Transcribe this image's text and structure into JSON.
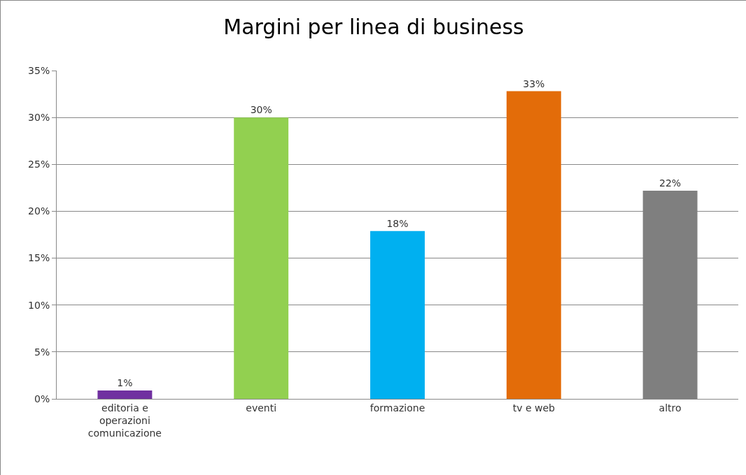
{
  "chart_data": {
    "type": "bar",
    "title": "Margini per linea di business",
    "categories": [
      "editoria e operazioni comunicazione",
      "eventi",
      "formazione",
      "tv e web",
      "altro"
    ],
    "values": [
      0.9,
      30,
      17.9,
      32.8,
      22.2
    ],
    "colors": [
      "#7030a0",
      "#92d050",
      "#00b0f0",
      "#e36c09",
      "#7f7f7f"
    ],
    "value_labels": [
      "1%",
      "30%",
      "18%",
      "33%",
      "22%"
    ],
    "ylim": [
      0,
      35
    ],
    "yticks": [
      {
        "value": 0,
        "label": "0%"
      },
      {
        "value": 5,
        "label": "5%"
      },
      {
        "value": 10,
        "label": "10%"
      },
      {
        "value": 15,
        "label": "15%"
      },
      {
        "value": 20,
        "label": "20%"
      },
      {
        "value": 25,
        "label": "25%"
      },
      {
        "value": 30,
        "label": "30%"
      },
      {
        "value": 35,
        "label": "35%"
      }
    ],
    "grid": "y"
  }
}
